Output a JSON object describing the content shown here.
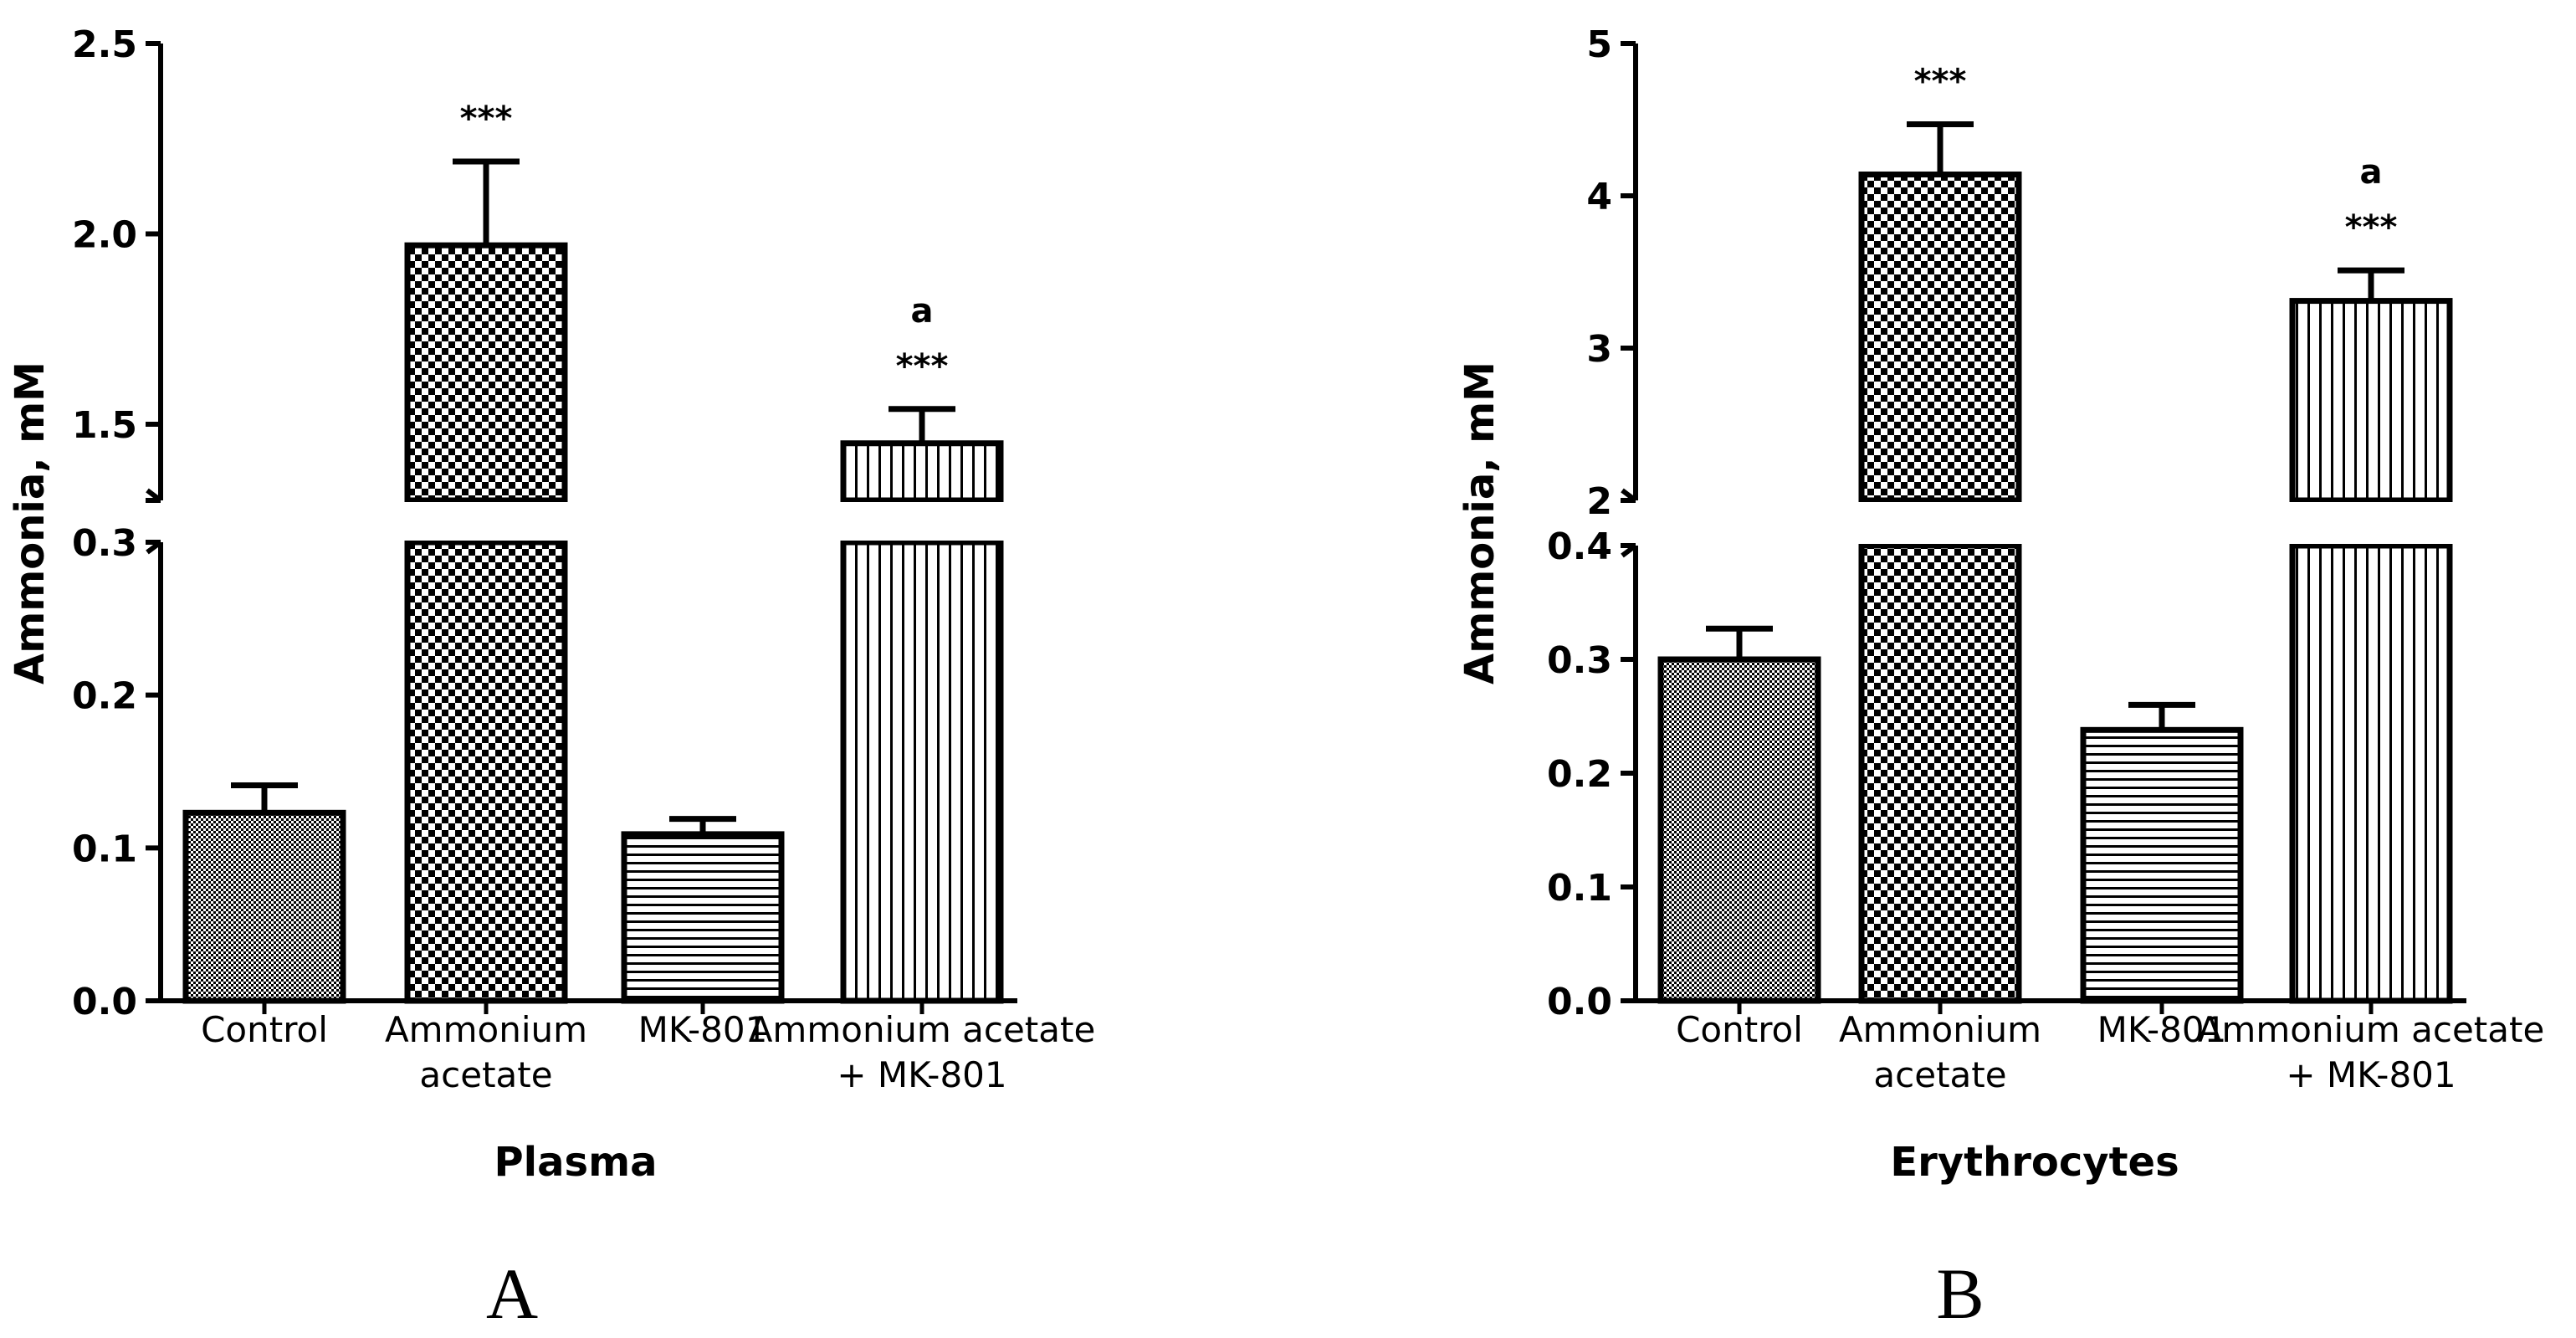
{
  "chart_data": [
    {
      "type": "bar",
      "title": "Plasma",
      "panel_label": "A",
      "ylabel": "Ammonia, mM",
      "xlabel": "",
      "categories": [
        [
          "Control"
        ],
        [
          "Ammonium",
          "acetate"
        ],
        [
          "MK-801"
        ],
        [
          "Ammonium acetate",
          "+ MK-801"
        ]
      ],
      "values": [
        0.123,
        1.97,
        0.109,
        1.45
      ],
      "errors": [
        0.018,
        0.22,
        0.01,
        0.09
      ],
      "patterns": [
        "dots",
        "checker",
        "hlines",
        "vlines"
      ],
      "annotations": [
        [
          "",
          ""
        ],
        [
          "***"
        ],
        [
          "",
          ""
        ],
        [
          "a",
          "***"
        ]
      ],
      "axis_break": {
        "lower": {
          "range": [
            0,
            0.3
          ],
          "ticks": [
            "0.0",
            "0.1",
            "0.2",
            "0.3"
          ]
        },
        "upper": {
          "range": [
            1.3,
            2.5
          ],
          "ticks": [
            "1.5",
            "2.0",
            "2.5"
          ]
        }
      },
      "grid": false
    },
    {
      "type": "bar",
      "title": "Erythrocytes",
      "panel_label": "B",
      "ylabel": "Ammonia, mM",
      "xlabel": "",
      "categories": [
        [
          "Control"
        ],
        [
          "Ammonium",
          "acetate"
        ],
        [
          "MK-801"
        ],
        [
          "Ammonium acetate",
          "+ MK-801"
        ]
      ],
      "values": [
        0.3,
        4.14,
        0.238,
        3.31
      ],
      "errors": [
        0.027,
        0.33,
        0.022,
        0.2
      ],
      "patterns": [
        "dots",
        "checker",
        "hlines",
        "vlines"
      ],
      "annotations": [
        [
          "",
          ""
        ],
        [
          "***"
        ],
        [
          "",
          ""
        ],
        [
          "a",
          "***"
        ]
      ],
      "axis_break": {
        "lower": {
          "range": [
            0,
            0.4
          ],
          "ticks": [
            "0.0",
            "0.1",
            "0.2",
            "0.3",
            "0.4"
          ]
        },
        "upper": {
          "range": [
            2,
            5
          ],
          "ticks": [
            "2",
            "3",
            "4",
            "5"
          ]
        }
      },
      "grid": false
    }
  ]
}
